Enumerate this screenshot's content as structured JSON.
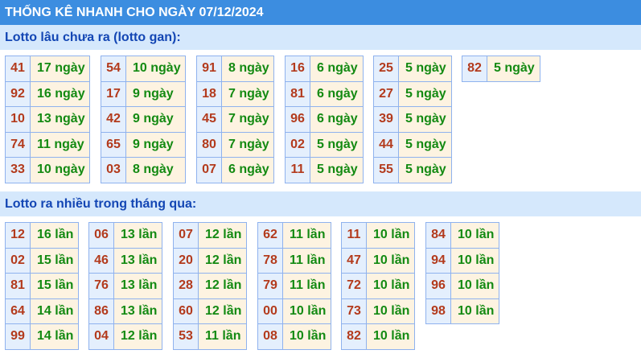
{
  "header": {
    "title": "THỐNG KÊ NHANH CHO NGÀY 07/12/2024"
  },
  "gan": {
    "title": "Lotto lâu chưa ra (lotto gan):",
    "tables": [
      [
        [
          "41",
          "17 ngày"
        ],
        [
          "92",
          "16 ngày"
        ],
        [
          "10",
          "13 ngày"
        ],
        [
          "74",
          "11 ngày"
        ],
        [
          "33",
          "10 ngày"
        ]
      ],
      [
        [
          "54",
          "10 ngày"
        ],
        [
          "17",
          "9 ngày"
        ],
        [
          "42",
          "9 ngày"
        ],
        [
          "65",
          "9 ngày"
        ],
        [
          "03",
          "8 ngày"
        ]
      ],
      [
        [
          "91",
          "8 ngày"
        ],
        [
          "18",
          "7 ngày"
        ],
        [
          "45",
          "7 ngày"
        ],
        [
          "80",
          "7 ngày"
        ],
        [
          "07",
          "6 ngày"
        ]
      ],
      [
        [
          "16",
          "6 ngày"
        ],
        [
          "81",
          "6 ngày"
        ],
        [
          "96",
          "6 ngày"
        ],
        [
          "02",
          "5 ngày"
        ],
        [
          "11",
          "5 ngày"
        ]
      ],
      [
        [
          "25",
          "5 ngày"
        ],
        [
          "27",
          "5 ngày"
        ],
        [
          "39",
          "5 ngày"
        ],
        [
          "44",
          "5 ngày"
        ],
        [
          "55",
          "5 ngày"
        ]
      ],
      [
        [
          "82",
          "5 ngày"
        ]
      ]
    ]
  },
  "nhieu": {
    "title": "Lotto ra nhiều trong tháng qua:",
    "tables": [
      [
        [
          "12",
          "16 lần"
        ],
        [
          "02",
          "15 lần"
        ],
        [
          "81",
          "15 lần"
        ],
        [
          "64",
          "14 lần"
        ],
        [
          "99",
          "14 lần"
        ]
      ],
      [
        [
          "06",
          "13 lần"
        ],
        [
          "46",
          "13 lần"
        ],
        [
          "76",
          "13 lần"
        ],
        [
          "86",
          "13 lần"
        ],
        [
          "04",
          "12 lần"
        ]
      ],
      [
        [
          "07",
          "12 lần"
        ],
        [
          "20",
          "12 lần"
        ],
        [
          "28",
          "12 lần"
        ],
        [
          "60",
          "12 lần"
        ],
        [
          "53",
          "11 lần"
        ]
      ],
      [
        [
          "62",
          "11 lần"
        ],
        [
          "78",
          "11 lần"
        ],
        [
          "79",
          "11 lần"
        ],
        [
          "00",
          "10 lần"
        ],
        [
          "08",
          "10 lần"
        ]
      ],
      [
        [
          "11",
          "10 lần"
        ],
        [
          "47",
          "10 lần"
        ],
        [
          "72",
          "10 lần"
        ],
        [
          "73",
          "10 lần"
        ],
        [
          "82",
          "10 lần"
        ]
      ],
      [
        [
          "84",
          "10 lần"
        ],
        [
          "94",
          "10 lần"
        ],
        [
          "96",
          "10 lần"
        ],
        [
          "98",
          "10 lần"
        ]
      ]
    ]
  }
}
